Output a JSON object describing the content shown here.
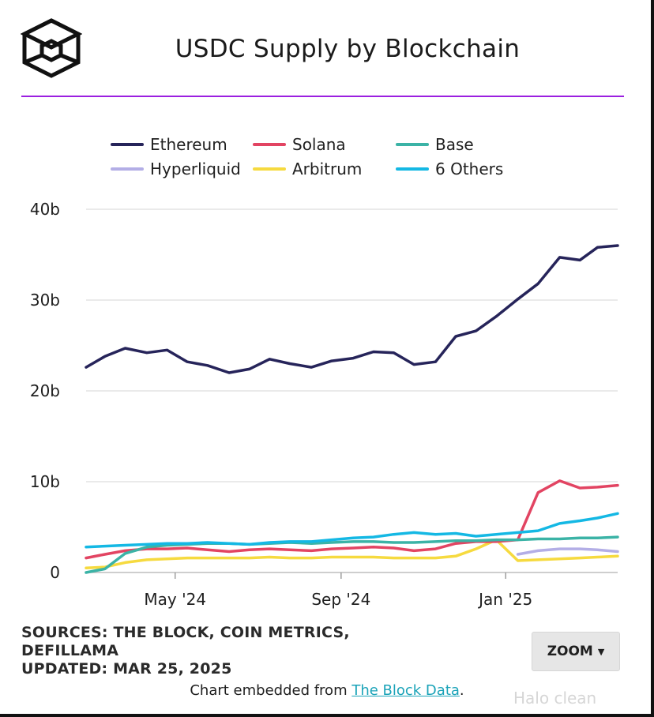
{
  "header": {
    "title": "USDC Supply by Blockchain"
  },
  "footer": {
    "sources_line1": "SOURCES: THE BLOCK, COIN METRICS,",
    "sources_line2": "DEFILLAMA",
    "updated": "UPDATED: MAR 25, 2025",
    "zoom_label": "ZOOM",
    "embed_prefix": "Chart embedded from ",
    "embed_link": "The Block Data",
    "embed_suffix": ".",
    "watermark": "Halo clean"
  },
  "chart_data": {
    "type": "line",
    "title": "USDC Supply by Blockchain",
    "y_ticks": [
      "40b",
      "30b",
      "20b",
      "10b",
      "0"
    ],
    "x_ticks": [
      "May '24",
      "Sep '24",
      "Jan '25"
    ],
    "ylim": [
      0,
      40
    ],
    "y_unit": "billion USD",
    "grid": true,
    "legend_position": "top",
    "x": [
      "2024-02-25",
      "2024-03-10",
      "2024-03-25",
      "2024-04-10",
      "2024-04-25",
      "2024-05-10",
      "2024-05-25",
      "2024-06-10",
      "2024-06-25",
      "2024-07-10",
      "2024-07-25",
      "2024-08-10",
      "2024-08-25",
      "2024-09-10",
      "2024-09-25",
      "2024-10-10",
      "2024-10-25",
      "2024-11-10",
      "2024-11-25",
      "2024-12-10",
      "2024-12-25",
      "2025-01-10",
      "2025-01-25",
      "2025-02-10",
      "2025-02-25",
      "2025-03-10",
      "2025-03-25"
    ],
    "series": [
      {
        "name": "Ethereum",
        "color": "#26245a",
        "values": [
          22.6,
          23.8,
          24.7,
          24.2,
          24.5,
          23.2,
          22.8,
          22.0,
          22.4,
          23.5,
          23.0,
          22.6,
          23.3,
          23.6,
          24.3,
          24.2,
          22.9,
          23.2,
          26.0,
          26.6,
          28.2,
          30.1,
          31.8,
          34.7,
          34.4,
          35.8,
          36.0
        ]
      },
      {
        "name": "Solana",
        "color": "#e24462",
        "values": [
          1.6,
          2.0,
          2.4,
          2.6,
          2.6,
          2.7,
          2.5,
          2.3,
          2.5,
          2.6,
          2.5,
          2.4,
          2.6,
          2.7,
          2.8,
          2.7,
          2.4,
          2.6,
          3.2,
          3.4,
          3.4,
          3.6,
          8.8,
          10.1,
          9.3,
          9.4,
          9.6
        ]
      },
      {
        "name": "Base",
        "color": "#3bb3a6",
        "values": [
          0.0,
          0.4,
          2.1,
          2.8,
          3.0,
          3.1,
          3.2,
          3.2,
          3.1,
          3.2,
          3.3,
          3.2,
          3.3,
          3.4,
          3.4,
          3.3,
          3.3,
          3.4,
          3.5,
          3.5,
          3.6,
          3.6,
          3.7,
          3.7,
          3.8,
          3.8,
          3.9
        ]
      },
      {
        "name": "Hyperliquid",
        "color": "#b3aee6",
        "values": [
          null,
          null,
          null,
          null,
          null,
          null,
          null,
          null,
          null,
          null,
          null,
          null,
          null,
          null,
          null,
          null,
          null,
          null,
          null,
          null,
          null,
          2.0,
          2.4,
          2.6,
          2.6,
          2.5,
          2.3
        ]
      },
      {
        "name": "Arbitrum",
        "color": "#f6da3f",
        "values": [
          0.5,
          0.6,
          1.1,
          1.4,
          1.5,
          1.6,
          1.6,
          1.6,
          1.6,
          1.7,
          1.6,
          1.6,
          1.7,
          1.7,
          1.7,
          1.6,
          1.6,
          1.6,
          1.8,
          2.6,
          3.6,
          1.3,
          1.4,
          1.5,
          1.6,
          1.7,
          1.8
        ]
      },
      {
        "name": "6 Others",
        "color": "#14b8e4",
        "values": [
          2.8,
          2.9,
          3.0,
          3.1,
          3.2,
          3.2,
          3.3,
          3.2,
          3.1,
          3.3,
          3.4,
          3.4,
          3.6,
          3.8,
          3.9,
          4.2,
          4.4,
          4.2,
          4.3,
          4.0,
          4.2,
          4.4,
          4.6,
          5.4,
          5.7,
          6.0,
          6.5
        ]
      }
    ]
  }
}
